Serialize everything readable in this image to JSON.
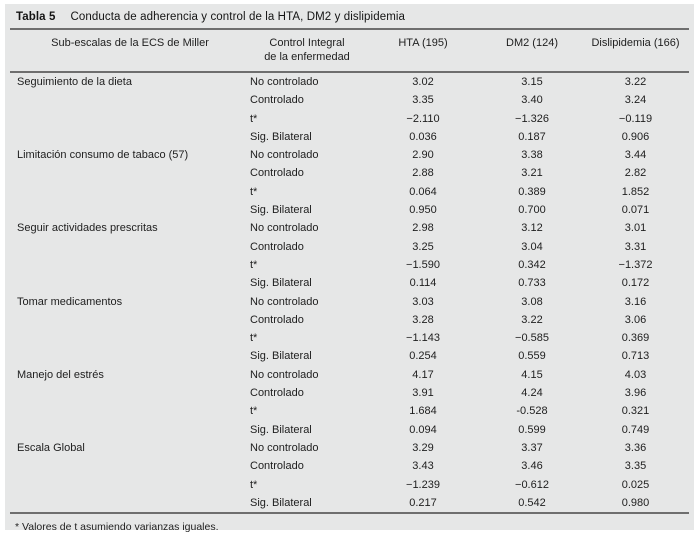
{
  "table": {
    "title_label": "Tabla 5",
    "title_text": "Conducta de adherencia y control de la HTA, DM2 y dislipidemia",
    "header": {
      "subscales": "Sub-escalas de la ECS de Miller",
      "control_line1": "Control Integral",
      "control_line2": "de la enfermedad",
      "hta": "HTA (195)",
      "dm2": "DM2 (124)",
      "dislipidemia": "Dislipidemia (166)"
    },
    "sections": [
      {
        "name": "Seguimiento de la dieta",
        "rows": [
          {
            "measure": "No controlado",
            "hta": "3.02",
            "dm2": "3.15",
            "dislipidemia": "3.22"
          },
          {
            "measure": "Controlado",
            "hta": "3.35",
            "dm2": "3.40",
            "dislipidemia": "3.24"
          },
          {
            "measure": "t*",
            "hta": "−2.110",
            "dm2": "−1.326",
            "dislipidemia": "−0.119"
          },
          {
            "measure": "Sig. Bilateral",
            "hta": "0.036",
            "dm2": "0.187",
            "dislipidemia": "0.906"
          }
        ]
      },
      {
        "name": "Limitación consumo de tabaco (57)",
        "rows": [
          {
            "measure": "No controlado",
            "hta": "2.90",
            "dm2": "3.38",
            "dislipidemia": "3.44"
          },
          {
            "measure": "Controlado",
            "hta": "2.88",
            "dm2": "3.21",
            "dislipidemia": "2.82"
          },
          {
            "measure": "t*",
            "hta": "0.064",
            "dm2": "0.389",
            "dislipidemia": "1.852"
          },
          {
            "measure": "Sig. Bilateral",
            "hta": "0.950",
            "dm2": "0.700",
            "dislipidemia": "0.071"
          }
        ]
      },
      {
        "name": "Seguir actividades prescritas",
        "rows": [
          {
            "measure": "No controlado",
            "hta": "2.98",
            "dm2": "3.12",
            "dislipidemia": "3.01"
          },
          {
            "measure": "Controlado",
            "hta": "3.25",
            "dm2": "3.04",
            "dislipidemia": "3.31"
          },
          {
            "measure": "t*",
            "hta": "−1.590",
            "dm2": "0.342",
            "dislipidemia": "−1.372"
          },
          {
            "measure": "Sig. Bilateral",
            "hta": "0.114",
            "dm2": "0.733",
            "dislipidemia": "0.172"
          }
        ]
      },
      {
        "name": "Tomar medicamentos",
        "rows": [
          {
            "measure": "No controlado",
            "hta": "3.03",
            "dm2": "3.08",
            "dislipidemia": "3.16"
          },
          {
            "measure": "Controlado",
            "hta": "3.28",
            "dm2": "3.22",
            "dislipidemia": "3.06"
          },
          {
            "measure": "t*",
            "hta": "−1.143",
            "dm2": "−0.585",
            "dislipidemia": "0.369"
          },
          {
            "measure": "Sig. Bilateral",
            "hta": "0.254",
            "dm2": "0.559",
            "dislipidemia": "0.713"
          }
        ]
      },
      {
        "name": "Manejo del estrés",
        "rows": [
          {
            "measure": "No controlado",
            "hta": "4.17",
            "dm2": "4.15",
            "dislipidemia": "4.03"
          },
          {
            "measure": "Controlado",
            "hta": "3.91",
            "dm2": "4.24",
            "dislipidemia": "3.96"
          },
          {
            "measure": "t*",
            "hta": "1.684",
            "dm2": "-0.528",
            "dislipidemia": "0.321"
          },
          {
            "measure": "Sig. Bilateral",
            "hta": "0.094",
            "dm2": "0.599",
            "dislipidemia": "0.749"
          }
        ]
      },
      {
        "name": "Escala Global",
        "rows": [
          {
            "measure": "No controlado",
            "hta": "3.29",
            "dm2": "3.37",
            "dislipidemia": "3.36"
          },
          {
            "measure": "Controlado",
            "hta": "3.43",
            "dm2": "3.46",
            "dislipidemia": "3.35"
          },
          {
            "measure": "t*",
            "hta": "−1.239",
            "dm2": "−0.612",
            "dislipidemia": "0.025"
          },
          {
            "measure": "Sig. Bilateral",
            "hta": "0.217",
            "dm2": "0.542",
            "dislipidemia": "0.980"
          }
        ]
      }
    ],
    "footnote": "* Valores de t asumiendo varianzas iguales."
  }
}
